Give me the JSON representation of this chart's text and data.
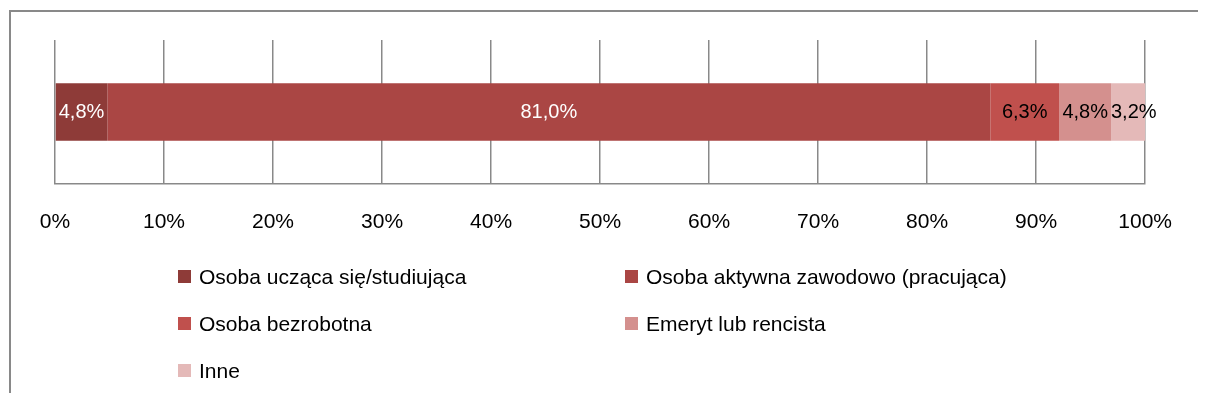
{
  "chart_data": {
    "type": "bar",
    "orientation": "horizontal",
    "stacked": true,
    "categories": [
      null
    ],
    "series": [
      {
        "name": "Osoba ucząca się/studiująca",
        "color": "#8e3b38",
        "values": [
          4.8
        ],
        "value_labels": [
          "4,8%"
        ]
      },
      {
        "name": "Osoba aktywna zawodowo (pracująca)",
        "color": "#aa4644",
        "values": [
          81.0
        ],
        "value_labels": [
          "81,0%"
        ]
      },
      {
        "name": "Osoba bezrobotna",
        "color": "#c0504d",
        "values": [
          6.3
        ],
        "value_labels": [
          "6,3%"
        ]
      },
      {
        "name": "Emeryt lub rencista",
        "color": "#d4908e",
        "values": [
          4.8
        ],
        "value_labels": [
          "4,8%"
        ]
      },
      {
        "name": "Inne",
        "color": "#e4b9b8",
        "values": [
          3.2
        ],
        "value_labels": [
          "3,2%"
        ]
      }
    ],
    "xlim": [
      0,
      100
    ],
    "xticks": [
      {
        "value": 0,
        "label": "0%"
      },
      {
        "value": 10,
        "label": "10%"
      },
      {
        "value": 20,
        "label": "20%"
      },
      {
        "value": 30,
        "label": "30%"
      },
      {
        "value": 40,
        "label": "40%"
      },
      {
        "value": 50,
        "label": "50%"
      },
      {
        "value": 60,
        "label": "60%"
      },
      {
        "value": 70,
        "label": "70%"
      },
      {
        "value": 80,
        "label": "80%"
      },
      {
        "value": 90,
        "label": "90%"
      },
      {
        "value": 100,
        "label": "100%"
      }
    ],
    "grid": "x",
    "legend": "bottom",
    "tick_labels": "x"
  }
}
